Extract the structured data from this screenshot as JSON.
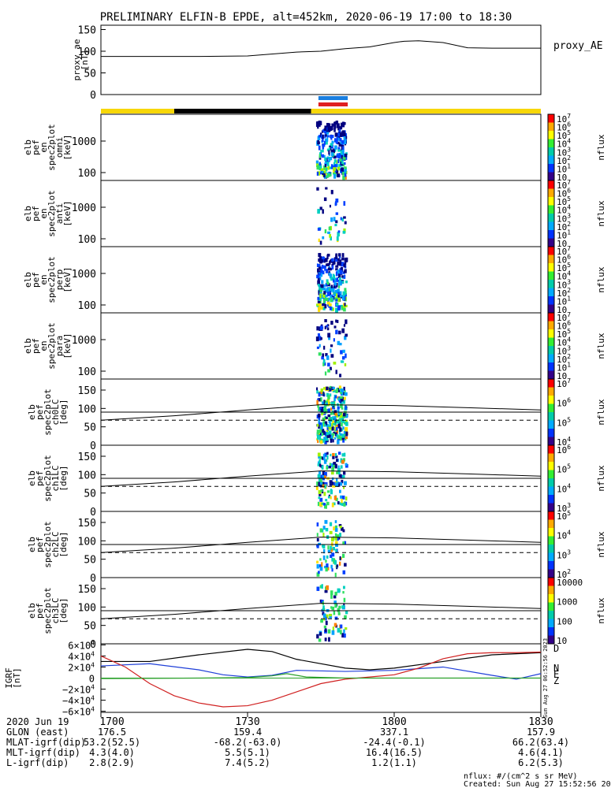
{
  "title": "PRELIMINARY ELFIN-B EPDE, alt=452km, 2020-06-19 17:00 to 18:30",
  "colors": {
    "yellow": "#f7d708",
    "black": "#000000",
    "blue": "#1a7fe0",
    "red": "#e02020",
    "gx": "#000000",
    "gy": "#1f3fd8",
    "gz": "#2aa02a",
    "gd": "#d02020"
  },
  "chart_data": [
    {
      "type": "line",
      "panel": "proxy_ae",
      "ylabel": [
        "proxy_ae",
        "[nT]"
      ],
      "right_label": "proxy_AE",
      "yticks": [
        "150",
        "100",
        "50",
        "0"
      ],
      "ylim": [
        0,
        160
      ],
      "x": [
        0,
        10,
        20,
        30,
        40,
        45,
        50,
        55,
        60,
        62,
        65,
        70,
        75,
        80,
        85,
        90
      ],
      "y": [
        88,
        88,
        88,
        89,
        98,
        100,
        106,
        110,
        120,
        123,
        124,
        120,
        108,
        107,
        107,
        107
      ]
    },
    {
      "type": "bar",
      "panel": "status_bars",
      "segments": [
        {
          "x0": 0,
          "x1": 15,
          "color": "yellow"
        },
        {
          "x0": 15,
          "x1": 43,
          "color": "black"
        },
        {
          "x0": 43,
          "x1": 90,
          "color": "yellow"
        }
      ],
      "blue_bar": [
        44.5,
        50.5
      ],
      "red_bar": [
        44.5,
        50.5
      ]
    },
    {
      "type": "heatmap",
      "panel": "omni",
      "ylabel": [
        "elb",
        "pef",
        "en",
        "spec2plot",
        "omni",
        "[keV]"
      ],
      "yticks": [
        "1000",
        "100"
      ],
      "cb_label": "nflux",
      "cb_ticks": [
        "10",
        "10",
        "10",
        "10",
        "10",
        "10",
        "10",
        "10"
      ],
      "cb_exp": [
        "7",
        "6",
        "5",
        "4",
        "3",
        "2",
        "1",
        ""
      ]
    },
    {
      "type": "heatmap",
      "panel": "anti",
      "ylabel": [
        "elb",
        "pef",
        "en",
        "spec2plot",
        "anti",
        "[keV]"
      ],
      "yticks": [
        "1000",
        "100"
      ],
      "cb_label": "nflux",
      "cb_ticks": [
        "10",
        "10",
        "10",
        "10",
        "10",
        "10",
        "10",
        "10"
      ],
      "cb_exp": [
        "7",
        "6",
        "5",
        "4",
        "3",
        "2",
        "1",
        ""
      ]
    },
    {
      "type": "heatmap",
      "panel": "perp",
      "ylabel": [
        "elb",
        "pef",
        "en",
        "spec2plot",
        "perp",
        "[keV]"
      ],
      "yticks": [
        "1000",
        "100"
      ],
      "cb_label": "nflux",
      "cb_ticks": [
        "10",
        "10",
        "10",
        "10",
        "10",
        "10",
        "10",
        "10"
      ],
      "cb_exp": [
        "7",
        "6",
        "5",
        "4",
        "3",
        "2",
        "1",
        ""
      ]
    },
    {
      "type": "heatmap",
      "panel": "para",
      "ylabel": [
        "elb",
        "pef",
        "en",
        "spec2plot",
        "para",
        "[keV]"
      ],
      "yticks": [
        "1000",
        "100"
      ],
      "cb_label": "nflux",
      "cb_ticks": [
        "10",
        "10",
        "10",
        "10",
        "10",
        "10",
        "10",
        "10"
      ],
      "cb_exp": [
        "7",
        "6",
        "5",
        "4",
        "3",
        "2",
        "1",
        ""
      ]
    },
    {
      "type": "heatmap",
      "panel": "ch0LC",
      "ylabel": [
        "elb",
        "pef",
        "spec2plot",
        "ch0LC",
        "[deg]"
      ],
      "yticks": [
        "150",
        "100",
        "50",
        "0"
      ],
      "cb_label": "nflux",
      "cb_ticks": [
        "10",
        "10",
        "10",
        "10"
      ],
      "cb_exp": [
        "7",
        "6",
        "5",
        "4"
      ]
    },
    {
      "type": "heatmap",
      "panel": "ch1LC",
      "ylabel": [
        "elb",
        "pef",
        "spec2plot",
        "ch1LC",
        "[deg]"
      ],
      "yticks": [
        "150",
        "100",
        "50",
        "0"
      ],
      "cb_label": "nflux",
      "cb_ticks": [
        "10",
        "10",
        "10",
        "10"
      ],
      "cb_exp": [
        "6",
        "5",
        "4",
        "3"
      ]
    },
    {
      "type": "heatmap",
      "panel": "ch2LC",
      "ylabel": [
        "elb",
        "pef",
        "spec2plot",
        "ch2LC",
        "[deg]"
      ],
      "yticks": [
        "150",
        "100",
        "50",
        "0"
      ],
      "cb_label": "nflux",
      "cb_ticks": [
        "10",
        "10",
        "10",
        "10"
      ],
      "cb_exp": [
        "5",
        "4",
        "3",
        "2"
      ]
    },
    {
      "type": "heatmap",
      "panel": "ch3LC",
      "ylabel": [
        "elb",
        "pef",
        "spec2plot",
        "ch3LC",
        "[deg]"
      ],
      "yticks": [
        "150",
        "100",
        "50",
        "0"
      ],
      "cb_label": "nflux",
      "cb_ticks": [
        "10000",
        "1000",
        "100",
        "10"
      ],
      "cb_exp": [
        "",
        "",
        "",
        ""
      ]
    },
    {
      "type": "line",
      "panel": "igrf",
      "ylabel": [
        "IGRF",
        "[nT]"
      ],
      "yticks": [
        "6×10",
        "4×10",
        "2×10",
        "0",
        "−2×10",
        "−4×10",
        "−6×10"
      ],
      "ytick_exp": [
        "4",
        "4",
        "4",
        "",
        "4",
        "4",
        "4"
      ],
      "ylim": [
        -62000,
        62000
      ],
      "legend": [
        "D",
        "N",
        "E",
        "Z"
      ],
      "series": [
        {
          "name": "black",
          "x": [
            0,
            10,
            20,
            30,
            35,
            40,
            50,
            55,
            60,
            70,
            80,
            90
          ],
          "y": [
            30000,
            30000,
            42000,
            52000,
            48000,
            34000,
            18000,
            15000,
            18000,
            30000,
            42000,
            46000
          ]
        },
        {
          "name": "blue",
          "x": [
            0,
            10,
            20,
            25,
            30,
            35,
            40,
            50,
            60,
            70,
            80,
            85,
            90
          ],
          "y": [
            22000,
            26000,
            15000,
            6000,
            2000,
            5000,
            14000,
            12000,
            14000,
            20000,
            5000,
            -2000,
            8000
          ]
        },
        {
          "name": "green",
          "x": [
            0,
            20,
            30,
            35,
            38,
            42,
            50,
            60,
            80,
            90
          ],
          "y": [
            -1000,
            0,
            1000,
            4000,
            8000,
            2000,
            0,
            0,
            0,
            0
          ]
        },
        {
          "name": "red",
          "x": [
            0,
            5,
            10,
            15,
            20,
            25,
            30,
            35,
            40,
            45,
            50,
            55,
            60,
            65,
            70,
            75,
            80,
            85,
            90
          ],
          "y": [
            40000,
            20000,
            -10000,
            -32000,
            -45000,
            -52000,
            -50000,
            -40000,
            -25000,
            -10000,
            -2000,
            2000,
            6000,
            18000,
            35000,
            44000,
            46000,
            46000,
            47000
          ]
        }
      ]
    }
  ],
  "timestamp_vertical": "Sun Aug 27 06:52:56 2023",
  "ephemeris": {
    "labels": [
      "2020 Jun 19",
      "GLON (east)",
      "MLAT-igrf(dip)",
      "MLT-igrf(dip)",
      "L-igrf(dip)"
    ],
    "columns": [
      {
        "time": "1700",
        "vals": [
          "176.5",
          "53.2(52.5)",
          "4.3(4.0)",
          "2.8(2.9)"
        ]
      },
      {
        "time": "1730",
        "vals": [
          "159.4",
          "-68.2(-63.0)",
          "5.5(5.1)",
          "7.4(5.2)"
        ]
      },
      {
        "time": "1800",
        "vals": [
          "337.1",
          "-24.4(-0.1)",
          "16.4(16.5)",
          "1.2(1.1)"
        ]
      },
      {
        "time": "1830",
        "vals": [
          "157.9",
          "66.2(63.4)",
          "4.6(4.1)",
          "6.2(5.3)"
        ]
      }
    ]
  },
  "footer": {
    "units": "nflux: #/(cm^2 s sr MeV)",
    "created": "Created: Sun Aug 27 15:52:56 2023"
  }
}
